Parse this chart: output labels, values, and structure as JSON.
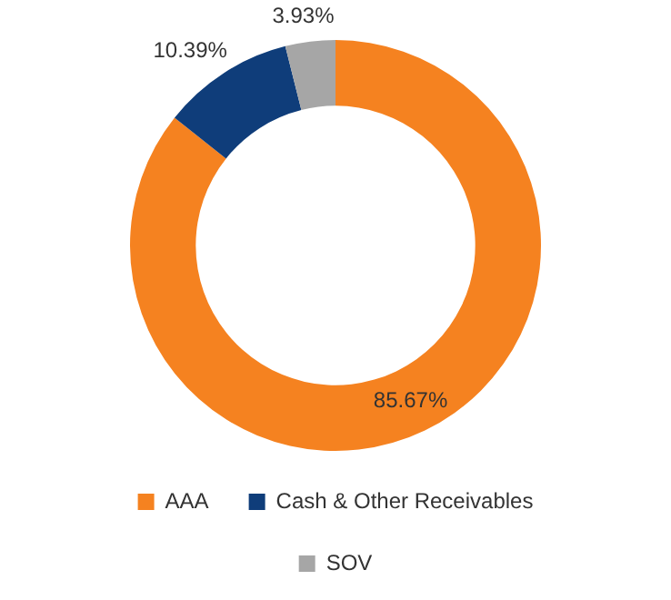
{
  "chart_data": {
    "type": "donut",
    "categories": [
      "AAA",
      "Cash & Other Receivables",
      "SOV"
    ],
    "values": [
      85.67,
      10.39,
      3.93
    ],
    "colors": [
      "#f58220",
      "#0f3d7a",
      "#a6a6a6"
    ],
    "value_labels": [
      "85.67%",
      "10.39%",
      "3.93%"
    ],
    "legend": "bottom"
  }
}
